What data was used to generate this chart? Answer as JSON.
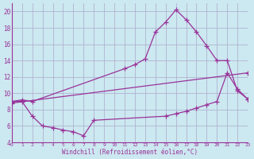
{
  "xlabel": "Windchill (Refroidissement éolien,°C)",
  "background_color": "#cce8f0",
  "grid_color": "#aaaacc",
  "line_color": "#993399",
  "xlim": [
    0,
    23
  ],
  "ylim": [
    4,
    21
  ],
  "yticks": [
    4,
    6,
    8,
    10,
    12,
    14,
    16,
    18,
    20
  ],
  "xticks": [
    0,
    1,
    2,
    3,
    4,
    5,
    6,
    7,
    8,
    9,
    10,
    11,
    12,
    13,
    14,
    15,
    16,
    17,
    18,
    19,
    20,
    21,
    22,
    23
  ],
  "series": [
    {
      "x": [
        0,
        1,
        2,
        11,
        12,
        13,
        14,
        15,
        16,
        17,
        18,
        19,
        20,
        21,
        22,
        23
      ],
      "y": [
        9.0,
        9.2,
        9.0,
        13.0,
        13.5,
        14.2,
        17.5,
        18.7,
        20.2,
        19.0,
        17.5,
        15.8,
        14.0,
        14.0,
        10.3,
        9.3
      ]
    },
    {
      "x": [
        0,
        1,
        2,
        3,
        4,
        5,
        6,
        7,
        8,
        15,
        16,
        17,
        18,
        19,
        20,
        21,
        22,
        23
      ],
      "y": [
        9.0,
        9.0,
        7.2,
        6.0,
        5.8,
        5.5,
        5.3,
        4.8,
        6.7,
        7.2,
        7.5,
        7.8,
        8.2,
        8.6,
        9.0,
        12.5,
        10.5,
        9.3
      ]
    },
    {
      "x": [
        0,
        23
      ],
      "y": [
        8.8,
        12.5
      ]
    }
  ]
}
